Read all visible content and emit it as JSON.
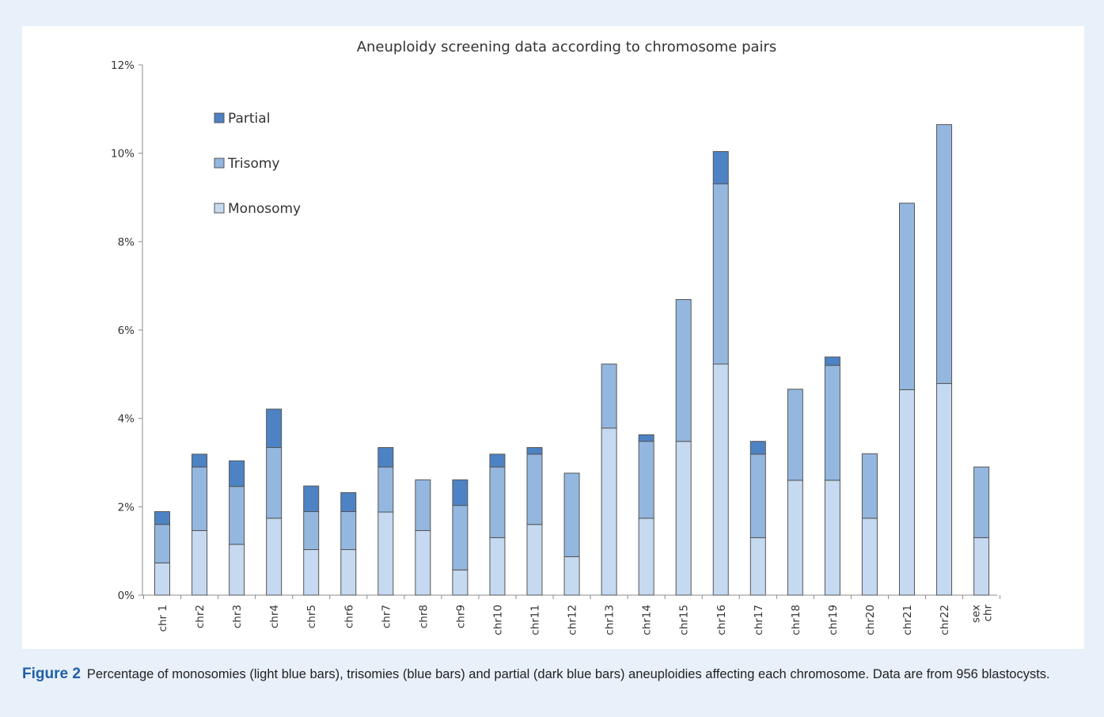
{
  "chart_data": {
    "type": "bar",
    "stacked": true,
    "title": "Aneuploidy screening data according to chromosome pairs",
    "categories": [
      "chr 1",
      "chr2",
      "chr3",
      "chr4",
      "chr5",
      "chr6",
      "chr7",
      "chr8",
      "chr9",
      "chr10",
      "chr11",
      "chr12",
      "chr13",
      "chr14",
      "chr15",
      "chr16",
      "chr17",
      "chr18",
      "chr19",
      "chr20",
      "chr21",
      "chr22",
      "sex chr"
    ],
    "series": [
      {
        "name": "Monosomy",
        "color": "#c5d9f0",
        "values": [
          0.73,
          1.46,
          1.15,
          1.74,
          1.03,
          1.03,
          1.88,
          1.46,
          0.57,
          1.3,
          1.6,
          0.87,
          3.78,
          1.74,
          3.48,
          5.23,
          1.3,
          2.6,
          2.6,
          1.74,
          4.65,
          4.79,
          1.3
        ]
      },
      {
        "name": "Trisomy",
        "color": "#94b7e0",
        "values": [
          0.87,
          1.44,
          1.31,
          1.6,
          0.86,
          0.86,
          1.02,
          1.15,
          1.46,
          1.6,
          1.59,
          1.89,
          1.45,
          1.74,
          3.21,
          4.08,
          1.89,
          2.06,
          2.6,
          1.46,
          4.22,
          5.86,
          1.6
        ]
      },
      {
        "name": "Partial",
        "color": "#4d83c4",
        "values": [
          0.29,
          0.29,
          0.58,
          0.87,
          0.58,
          0.43,
          0.44,
          0.0,
          0.58,
          0.29,
          0.15,
          0.0,
          0.0,
          0.15,
          0.0,
          0.73,
          0.29,
          0.0,
          0.19,
          0.0,
          0.0,
          0.0,
          0.0
        ]
      }
    ],
    "ylim": [
      0,
      12
    ],
    "yticks": [
      "0%",
      "2%",
      "4%",
      "6%",
      "8%",
      "10%",
      "12%"
    ],
    "ytick_values": [
      0,
      2,
      4,
      6,
      8,
      10,
      12
    ],
    "legend_position": "top-left",
    "legend_order": [
      "Partial",
      "Trisomy",
      "Monosomy"
    ]
  },
  "caption": {
    "label": "Figure 2",
    "text": "Percentage of monosomies (light blue bars), trisomies (blue bars) and partial (dark blue bars) aneuploidies affecting each chromosome. Data are from 956 blastocysts."
  }
}
